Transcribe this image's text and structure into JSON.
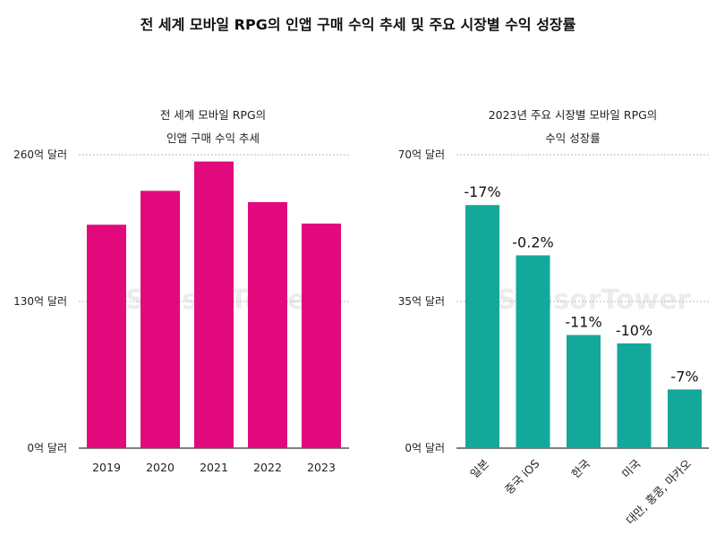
{
  "page_title": "전 세계 모바일 RPG의 인앱 구매 수익 추세 및 주요 시장별 수익 성장률",
  "watermark": "SensorTower",
  "colors": {
    "left_bars": "#e2097d",
    "right_bars": "#14a89a",
    "axis": "#333333",
    "grid": "#bbbbbb"
  },
  "chart_data": [
    {
      "type": "bar",
      "title_lines": [
        "전 세계 모바일 RPG의",
        "인앱 구매 수익 추세"
      ],
      "categories": [
        "2019",
        "2020",
        "2021",
        "2022",
        "2023"
      ],
      "values": [
        198,
        228,
        254,
        218,
        199
      ],
      "yticks": [
        0,
        130,
        260
      ],
      "ytick_labels": [
        "0억 달러",
        "130억 달러",
        "260억 달러"
      ],
      "ylim": [
        0,
        260
      ],
      "grid": true
    },
    {
      "type": "bar",
      "title_lines": [
        "2023년 주요 시장별 모바일 RPG의",
        "수익 성장률"
      ],
      "categories": [
        "일본",
        "중국 iOS",
        "한국",
        "미국",
        "대만, 홍콩, 마카오"
      ],
      "values": [
        58,
        46,
        27,
        25,
        14
      ],
      "data_labels": [
        "-17%",
        "-0.2%",
        "-11%",
        "-10%",
        "-7%"
      ],
      "yticks": [
        0,
        35,
        70
      ],
      "ytick_labels": [
        "0억 달러",
        "35억 달러",
        "70억 달러"
      ],
      "ylim": [
        0,
        70
      ],
      "grid": true
    }
  ]
}
